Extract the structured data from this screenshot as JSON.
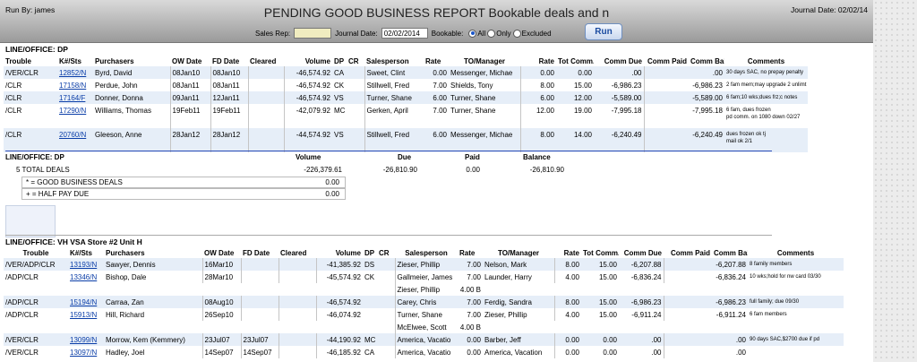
{
  "header": {
    "run_by": "Run By: james",
    "title": "PENDING GOOD BUSINESS REPORT Bookable deals and n",
    "journal_date_top": "Journal Date: 02/02/14",
    "sales_rep_label": "Sales Rep:",
    "sales_rep_value": "",
    "journal_date_label": "Journal Date:",
    "journal_date_value": "02/02/2014",
    "bookable_label": "Bookable:",
    "opt_all": "All",
    "opt_only": "Only",
    "opt_excluded": "Excluded",
    "run_label": "Run"
  },
  "section1": {
    "title": "LINE/OFFICE: DP",
    "columns": [
      "Trouble",
      "K#/Sts",
      "Purchasers",
      "OW Date",
      "FD Date",
      "Cleared",
      "Volume",
      "DP",
      "CR",
      "Salesperson",
      "Rate",
      "TO/Manager",
      "Rate",
      "Tot Comm.",
      "Comm Due",
      "Comm Paid",
      "Comm Bal",
      "Comments"
    ],
    "rows": [
      {
        "trouble": "/VER/CLR",
        "k": "12852/N",
        "purchaser": "Byrd, David",
        "ow": "08Jan10",
        "fd": "08Jan10",
        "cleared": "",
        "volume": "-46,574.92",
        "dp": "CA",
        "cr": "",
        "sales": "Sweet, Clint",
        "rate": "0.00",
        "mgr": "Messenger, Michae",
        "rate2": "0.00",
        "tot": "0.00",
        "due": ".00",
        "paid": "",
        "bal": ".00",
        "comment": "30 days SAC, no prepay penalty",
        "comment2": ""
      },
      {
        "trouble": "/CLR",
        "k": "17158/N",
        "purchaser": "Perdue, John",
        "ow": "08Jan11",
        "fd": "08Jan11",
        "cleared": "",
        "volume": "-46,574.92",
        "dp": "CK",
        "cr": "",
        "sales": "Stillwell, Fred",
        "rate": "7.00",
        "mgr": "Shields, Tony",
        "rate2": "8.00",
        "tot": "15.00",
        "due": "-6,986.23",
        "paid": "",
        "bal": "-6,986.23",
        "comment": "2 fam mem;may upgrade 2 unlimt",
        "comment2": ""
      },
      {
        "trouble": "/CLR",
        "k": "17164/F",
        "purchaser": "Donner, Donna",
        "ow": "09Jan11",
        "fd": "12Jan11",
        "cleared": "",
        "volume": "-46,574.92",
        "dp": "VS",
        "cr": "",
        "sales": "Turner, Shane",
        "rate": "6.00",
        "mgr": "Turner, Shane",
        "rate2": "6.00",
        "tot": "12.00",
        "due": "-5,589.00",
        "paid": "",
        "bal": "-5,589.00",
        "comment": "6 fam;10 wks;dues frz;c notes",
        "comment2": ""
      },
      {
        "trouble": "/CLR",
        "k": "17290/N",
        "purchaser": "Williams, Thomas",
        "ow": "19Feb11",
        "fd": "19Feb11",
        "cleared": "",
        "volume": "-42,079.92",
        "dp": "MC",
        "cr": "",
        "sales": "Gerken, April",
        "rate": "7.00",
        "mgr": "Turner, Shane",
        "rate2": "12.00",
        "tot": "19.00",
        "due": "-7,995.18",
        "paid": "",
        "bal": "-7,995.18",
        "comment": "6 fam, dues frozen",
        "comment2": "pd comm. on 1080 down 02/27"
      },
      {
        "trouble": "/CLR",
        "k": "20760/N",
        "purchaser": "Gleeson, Anne",
        "ow": "28Jan12",
        "fd": "28Jan12",
        "cleared": "",
        "volume": "-44,574.92",
        "dp": "VS",
        "cr": "",
        "sales": "Stillwell, Fred",
        "rate": "6.00",
        "mgr": "Messenger, Michae",
        "rate2": "8.00",
        "tot": "14.00",
        "due": "-6,240.49",
        "paid": "",
        "bal": "-6,240.49",
        "comment": "dues frozen ok tj",
        "comment2": "mail ok 2/1"
      }
    ]
  },
  "summary": {
    "title": "LINE/OFFICE: DP",
    "col_volume": "Volume",
    "col_due": "Due",
    "col_paid": "Paid",
    "col_balance": "Balance",
    "total_label": "5 TOTAL DEALS",
    "total_volume": "-226,379.61",
    "total_due": "-26,810.90",
    "total_paid": "0.00",
    "total_balance": "-26,810.90",
    "good_label": "* = GOOD BUSINESS DEALS",
    "good_value": "0.00",
    "half_label": "+ = HALF PAY DUE",
    "half_value": "0.00"
  },
  "section2": {
    "title": "LINE/OFFICE: VH VSA Store #2 Unit H",
    "columns": [
      "Trouble",
      "K#/Sts",
      "Purchasers",
      "OW Date",
      "FD Date",
      "Cleared",
      "Volume",
      "DP",
      "CR",
      "Salesperson",
      "Rate",
      "TO/Manager",
      "Rate",
      "Tot Comm.",
      "Comm Due",
      "Comm Paid",
      "Comm Bal",
      "Comments"
    ],
    "rows": [
      {
        "trouble": "/VER/ADP/CLR",
        "k": "13193/N",
        "purchaser": "Sawyer, Dennis",
        "ow": "16Mar10",
        "fd": "",
        "cleared": "",
        "volume": "-41,385.92",
        "dp": "DS",
        "cr": "",
        "sales": "Zieser, Phillip",
        "rate": "7.00",
        "mgr": "Nelson, Mark",
        "rate2": "8.00",
        "tot": "15.00",
        "due": "-6,207.88",
        "paid": "",
        "bal": "-6,207.88",
        "comment": "8 family members"
      },
      {
        "trouble": "/ADP/CLR",
        "k": "13346/N",
        "purchaser": "Bishop, Dale",
        "ow": "28Mar10",
        "fd": "",
        "cleared": "",
        "volume": "-45,574.92",
        "dp": "CK",
        "cr": "",
        "sales": "Gallmeier, James",
        "rate": "7.00",
        "mgr": "Launder, Harry",
        "rate2": "4.00",
        "tot": "15.00",
        "due": "-6,836.24",
        "paid": "",
        "bal": "-6,836.24",
        "comment": "10 wks;hold for nw card 03/30",
        "split_sales": "Zieser, Phillip",
        "split_rate": "4.00 B"
      },
      {
        "trouble": "/ADP/CLR",
        "k": "15194/N",
        "purchaser": "Carraa, Zan",
        "ow": "08Aug10",
        "fd": "",
        "cleared": "",
        "volume": "-46,574.92",
        "dp": "",
        "cr": "",
        "sales": "Carey, Chris",
        "rate": "7.00",
        "mgr": "Ferdig, Sandra",
        "rate2": "8.00",
        "tot": "15.00",
        "due": "-6,986.23",
        "paid": "",
        "bal": "-6,986.23",
        "comment": "full family; due 09/30"
      },
      {
        "trouble": "/ADP/CLR",
        "k": "15913/N",
        "purchaser": "Hill, Richard",
        "ow": "26Sep10",
        "fd": "",
        "cleared": "",
        "volume": "-46,074.92",
        "dp": "",
        "cr": "",
        "sales": "Turner, Shane",
        "rate": "7.00",
        "mgr": "Zieser, Phillip",
        "rate2": "4.00",
        "tot": "15.00",
        "due": "-6,911.24",
        "paid": "",
        "bal": "-6,911.24",
        "comment": "6 fam members",
        "split_sales": "McElwee, Scott",
        "split_rate": "4.00 B"
      },
      {
        "trouble": "/VER/CLR",
        "k": "13099/N",
        "purchaser": "Morrow, Kem (Kemmery)",
        "ow": "23Jul07",
        "fd": "23Jul07",
        "cleared": "",
        "volume": "-44,190.92",
        "dp": "MC",
        "cr": "",
        "sales": "America, Vacatio",
        "rate": "0.00",
        "mgr": "Barber, Jeff",
        "rate2": "0.00",
        "tot": "0.00",
        "due": ".00",
        "paid": "",
        "bal": ".00",
        "comment": "90 days SAC,$2700 due if pd"
      },
      {
        "trouble": "/VER/CLR",
        "k": "13097/N",
        "purchaser": "Hadley, Joel",
        "ow": "14Sep07",
        "fd": "14Sep07",
        "cleared": "",
        "volume": "-46,185.92",
        "dp": "CA",
        "cr": "",
        "sales": "America, Vacatio",
        "rate": "0.00",
        "mgr": "America, Vacation",
        "rate2": "0.00",
        "tot": "0.00",
        "due": ".00",
        "paid": "",
        "bal": ".00",
        "comment": ""
      }
    ]
  }
}
